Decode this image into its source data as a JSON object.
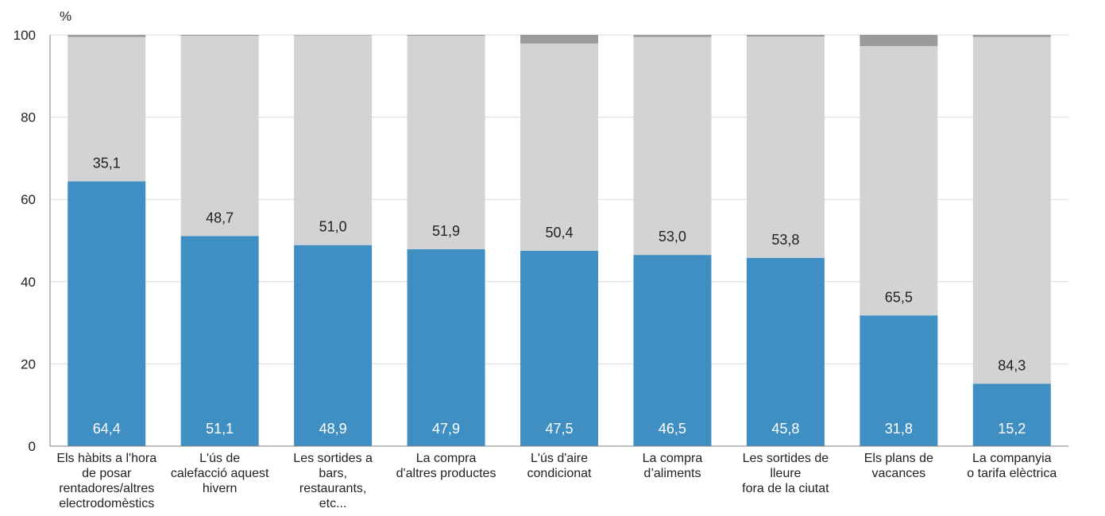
{
  "chart_data": {
    "type": "bar",
    "stacked": true,
    "title": "",
    "ylabel": "%",
    "ylim": [
      0,
      100
    ],
    "yticks": [
      0,
      20,
      40,
      60,
      80,
      100
    ],
    "grid": true,
    "categories": [
      [
        "Els hàbits a l'hora",
        "de posar",
        "rentadores/altres",
        "electrodomèstics"
      ],
      [
        "L'ús de",
        "calefacció aquest",
        "hivern"
      ],
      [
        "Les sortides a",
        "bars,",
        "restaurants,",
        "etc..."
      ],
      [
        "La compra",
        "d'altres productes"
      ],
      [
        "L'ús d'aire",
        "condicionat"
      ],
      [
        "La compra",
        "d’aliments"
      ],
      [
        "Les sortides de",
        "lleure",
        "fora de la ciutat"
      ],
      [
        "Els plans de",
        "vacances"
      ],
      [
        "La companyia",
        "o tarifa elèctrica"
      ]
    ],
    "series": [
      {
        "color": "#3f8fc3",
        "values": [
          64.4,
          51.1,
          48.9,
          47.9,
          47.5,
          46.5,
          45.8,
          31.8,
          15.2
        ],
        "labels": [
          "64,4",
          "51,1",
          "48,9",
          "47,9",
          "47,5",
          "46,5",
          "45,8",
          "31,8",
          "15,2"
        ]
      },
      {
        "color": "#d2d3d5",
        "values": [
          35.1,
          48.7,
          51.0,
          51.9,
          50.4,
          53.0,
          53.8,
          65.5,
          84.3
        ],
        "labels": [
          "35,1",
          "48,7",
          "51,0",
          "51,9",
          "50,4",
          "53,0",
          "53,8",
          "65,5",
          "84,3"
        ]
      },
      {
        "color": "#9a9b9d",
        "values": [
          0.5,
          0.2,
          0.1,
          0.2,
          2.1,
          0.5,
          0.4,
          2.7,
          0.5
        ]
      }
    ]
  }
}
